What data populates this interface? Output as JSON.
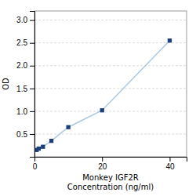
{
  "chart_data": {
    "type": "line",
    "x": [
      0,
      0.625,
      1.25,
      2.5,
      5,
      10,
      20,
      40
    ],
    "series": [
      {
        "type": "line",
        "color": "#aac8e0",
        "values": [
          0.12,
          0.15,
          0.18,
          0.22,
          0.35,
          0.65,
          1.02,
          2.55
        ]
      },
      {
        "type": "scatter",
        "color": "#1a3f7a",
        "marker": "square",
        "values": [
          null,
          0.15,
          0.18,
          0.22,
          0.35,
          0.65,
          1.02,
          2.55
        ]
      }
    ],
    "x_label": "Monkey IGF2R\nConcentration (ng/ml)",
    "y_label": "OD",
    "xlim": [
      0,
      45
    ],
    "ylim": [
      0,
      3.2
    ],
    "xticks": [
      0,
      20,
      40
    ],
    "yticks": [
      0.5,
      {
        "value": 1.0,
        "label": "1.0"
      },
      1.5,
      {
        "value": 2.0,
        "label": "2.0"
      },
      2.5,
      {
        "value": 3.0,
        "label": "3.0"
      }
    ],
    "grid": "y"
  }
}
